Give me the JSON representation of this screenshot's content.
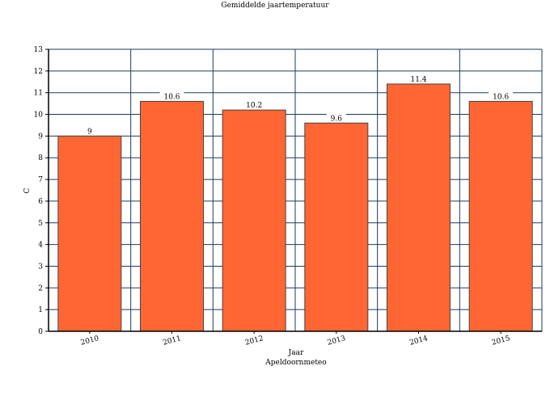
{
  "chart_data": {
    "type": "bar",
    "title": "Gemiddelde jaartemperatuur",
    "xlabel": "Jaar",
    "ylabel": "C",
    "caption": "Apeldoornmeteo",
    "categories": [
      "2010",
      "2011",
      "2012",
      "2013",
      "2014",
      "2015"
    ],
    "values": [
      9,
      10.6,
      10.2,
      9.6,
      11.4,
      10.6
    ],
    "data_labels": [
      "9",
      "10.6",
      "10.2",
      "9.6",
      "11.4",
      "10.6"
    ],
    "ylim": [
      0,
      13
    ],
    "yticks": [
      "0",
      "1",
      "2",
      "3",
      "4",
      "5",
      "6",
      "7",
      "8",
      "9",
      "10",
      "11",
      "12",
      "13"
    ],
    "grid": true,
    "colors": {
      "bar": "#ff6633",
      "bar_border": "#444444",
      "grid": "#1f3a5a"
    }
  }
}
